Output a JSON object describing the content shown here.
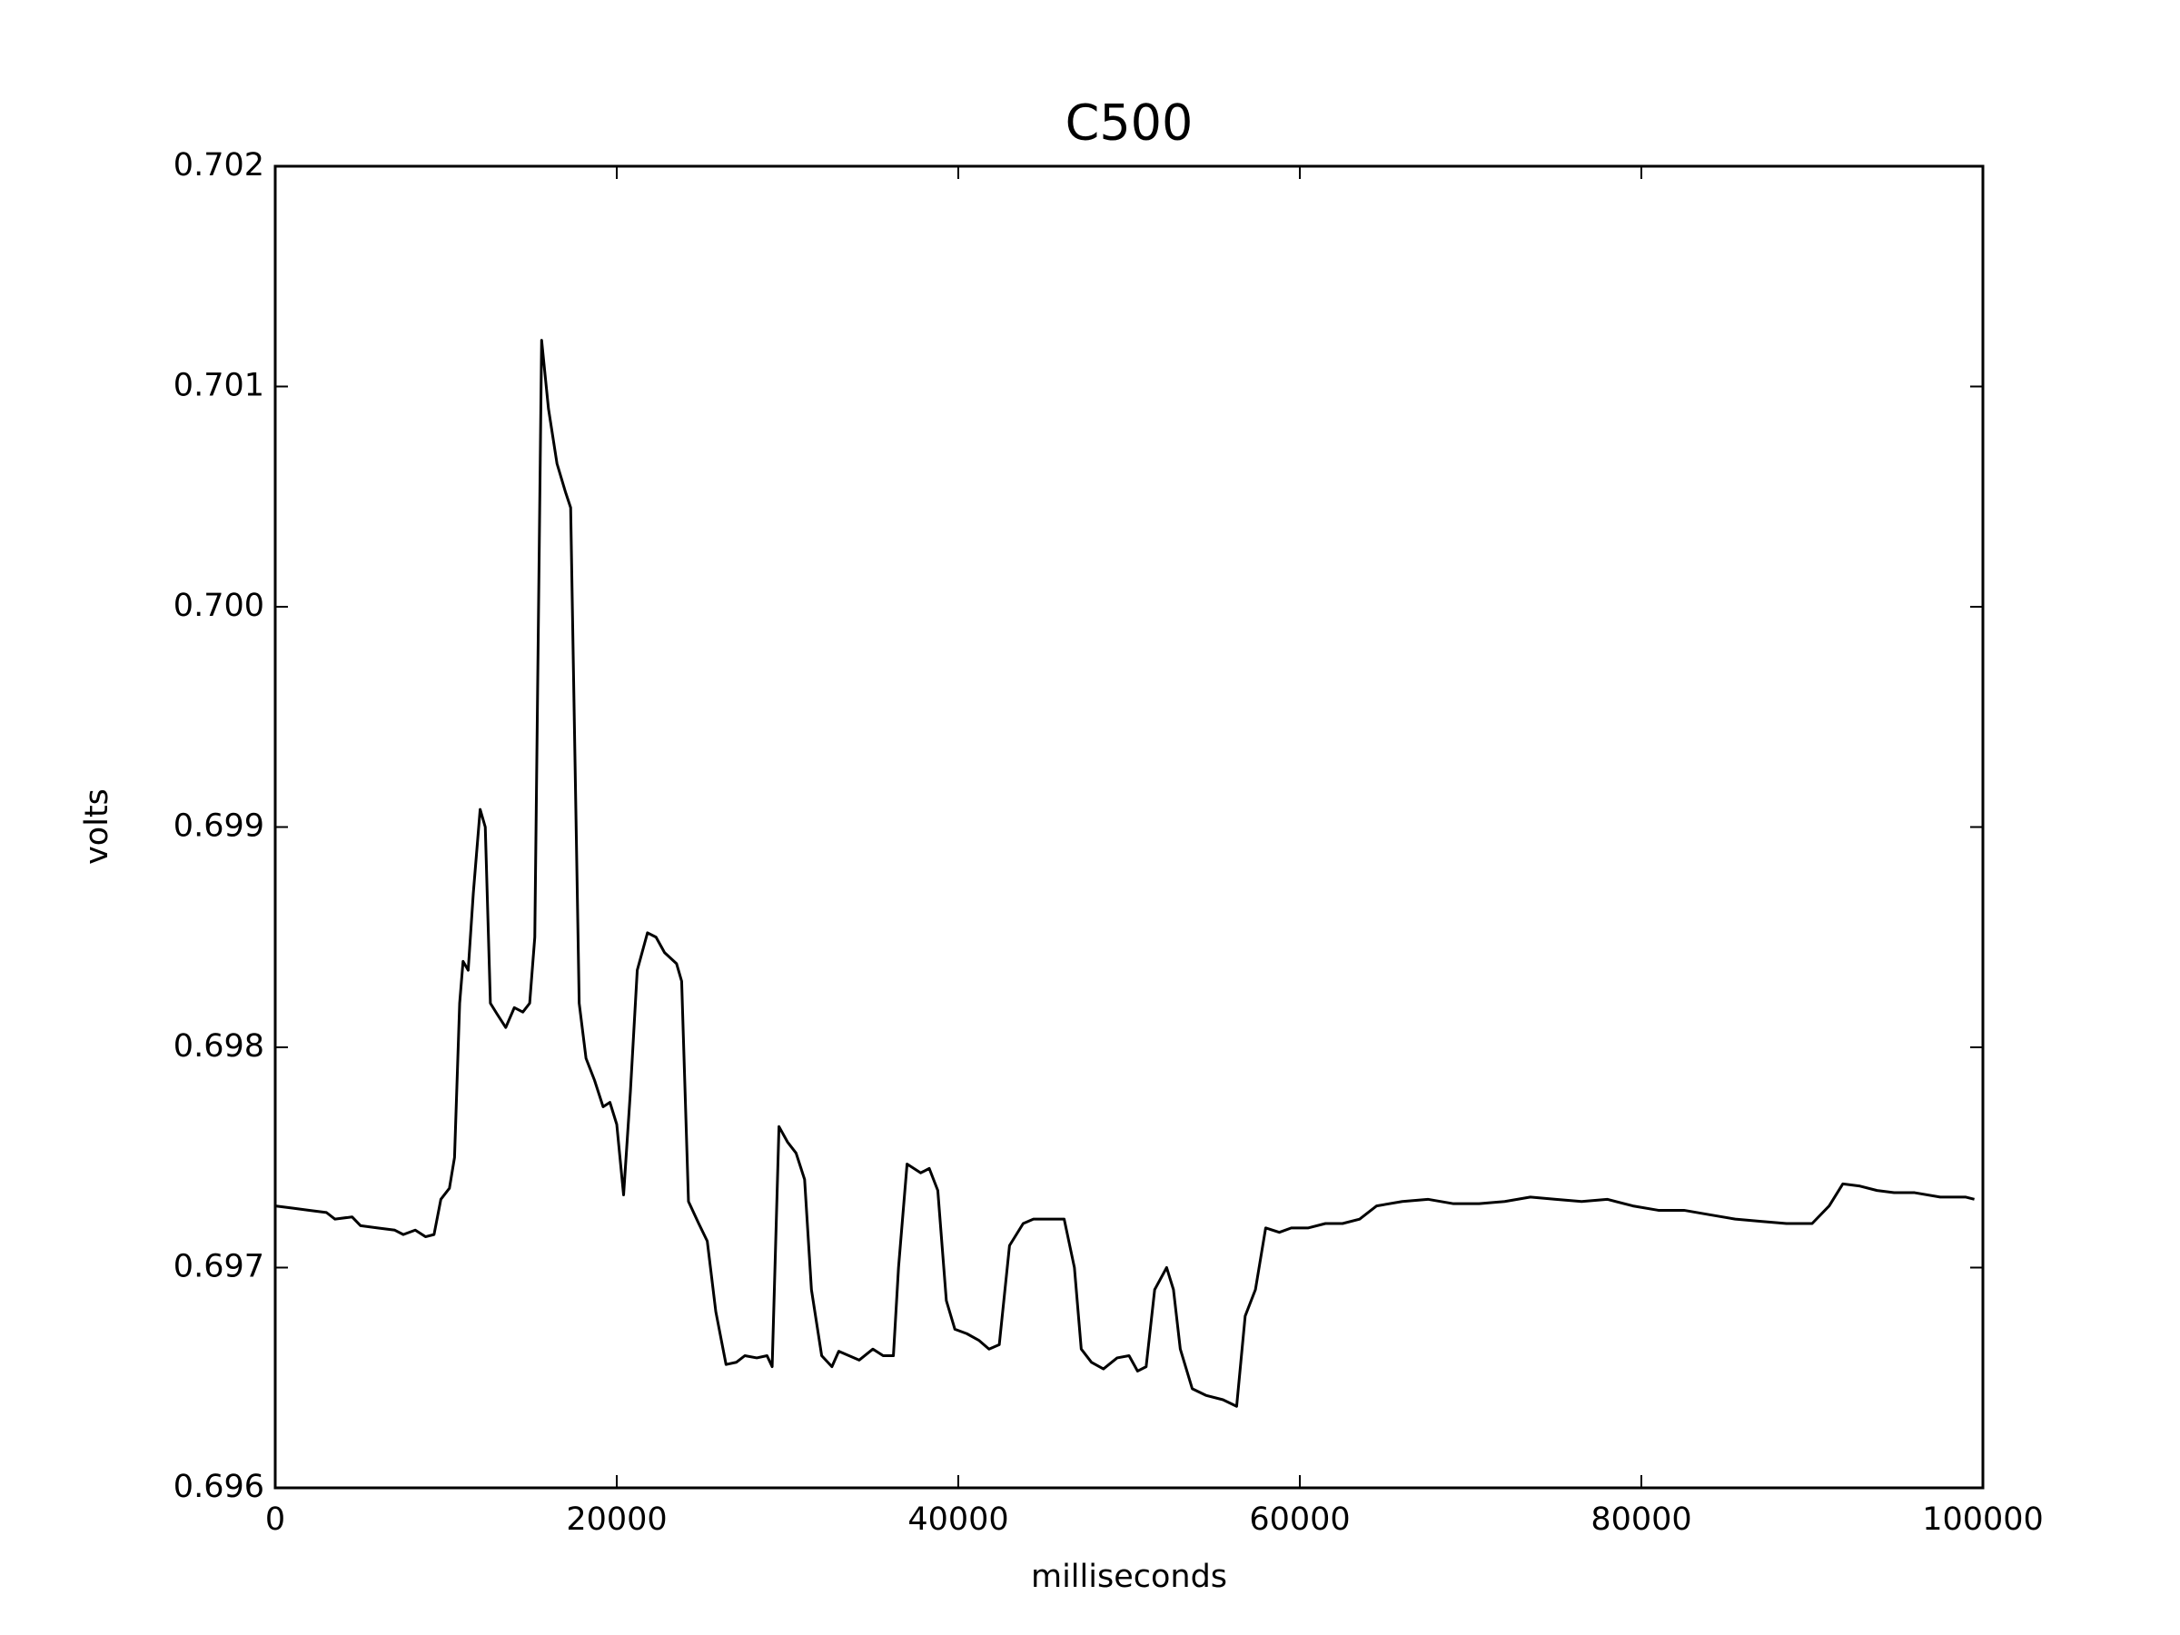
{
  "chart_data": {
    "type": "line",
    "title": "C500",
    "x_label": "milliseconds",
    "y_label": "volts",
    "xlim": [
      0,
      100000
    ],
    "xticks": [
      0,
      20000,
      40000,
      60000,
      80000,
      100000
    ],
    "ylim": [
      0.696,
      0.702
    ],
    "yticks": [
      0.696,
      0.697,
      0.698,
      0.699,
      {
        "value": 0.7,
        "label": "0.700"
      },
      0.701,
      0.702
    ],
    "grid": false,
    "x": [
      0,
      1000,
      2000,
      3000,
      3500,
      4500,
      5000,
      6000,
      7000,
      7500,
      8200,
      8800,
      9300,
      9700,
      10200,
      10500,
      10800,
      11000,
      11300,
      11600,
      12000,
      12300,
      12600,
      13000,
      13500,
      14000,
      14500,
      14900,
      15200,
      15600,
      16000,
      16500,
      17000,
      17300,
      17800,
      18200,
      18700,
      19200,
      19600,
      20000,
      20400,
      20800,
      21200,
      21800,
      22300,
      22800,
      23500,
      23800,
      24200,
      24800,
      25300,
      25800,
      26400,
      27000,
      27500,
      28200,
      28800,
      29100,
      29500,
      30000,
      30500,
      31000,
      31400,
      32000,
      32600,
      33000,
      33600,
      34200,
      35000,
      35600,
      36200,
      36500,
      37000,
      37800,
      38300,
      38800,
      39300,
      39800,
      40500,
      41200,
      41800,
      42400,
      43000,
      43800,
      44400,
      45200,
      46200,
      46800,
      47200,
      47800,
      48500,
      49300,
      50000,
      50500,
      51000,
      51500,
      52200,
      52600,
      53000,
      53700,
      54500,
      55500,
      56300,
      56800,
      57400,
      58000,
      58800,
      59500,
      60500,
      61500,
      62500,
      63500,
      64500,
      66000,
      67500,
      69000,
      70500,
      72000,
      73500,
      75000,
      76500,
      78000,
      79500,
      81000,
      82500,
      84000,
      85500,
      87000,
      88500,
      90000,
      91000,
      91800,
      92800,
      93800,
      94800,
      96000,
      97500,
      99000,
      99500
    ],
    "series": [
      {
        "name": "C500",
        "color": "#000000",
        "values": [
          0.69728,
          0.69727,
          0.69726,
          0.69725,
          0.69722,
          0.69723,
          0.69719,
          0.69718,
          0.69717,
          0.69715,
          0.69717,
          0.69714,
          0.69715,
          0.69731,
          0.69736,
          0.6975,
          0.6982,
          0.69839,
          0.69835,
          0.6987,
          0.69908,
          0.699,
          0.6982,
          0.69815,
          0.69809,
          0.69818,
          0.69816,
          0.6982,
          0.6985,
          0.70121,
          0.7009,
          0.70065,
          0.70052,
          0.70045,
          0.6982,
          0.69795,
          0.69785,
          0.69773,
          0.69775,
          0.69765,
          0.69733,
          0.6978,
          0.69835,
          0.69852,
          0.6985,
          0.69843,
          0.69838,
          0.6983,
          0.6973,
          0.6972,
          0.69712,
          0.6968,
          0.69656,
          0.69657,
          0.6966,
          0.69659,
          0.6966,
          0.69655,
          0.69764,
          0.69757,
          0.69752,
          0.6974,
          0.6969,
          0.6966,
          0.69655,
          0.69662,
          0.6966,
          0.69658,
          0.69663,
          0.6966,
          0.6966,
          0.697,
          0.69747,
          0.69743,
          0.69745,
          0.69735,
          0.69685,
          0.69672,
          0.6967,
          0.69667,
          0.69663,
          0.69665,
          0.6971,
          0.6972,
          0.69722,
          0.69722,
          0.69722,
          0.697,
          0.69663,
          0.69657,
          0.69654,
          0.69659,
          0.6966,
          0.69653,
          0.69655,
          0.6969,
          0.697,
          0.6969,
          0.69663,
          0.69645,
          0.69642,
          0.6964,
          0.69637,
          0.69678,
          0.6969,
          0.69718,
          0.69716,
          0.69718,
          0.69718,
          0.6972,
          0.6972,
          0.69722,
          0.69728,
          0.6973,
          0.69731,
          0.69729,
          0.69729,
          0.6973,
          0.69732,
          0.69731,
          0.6973,
          0.69731,
          0.69728,
          0.69726,
          0.69726,
          0.69724,
          0.69722,
          0.69721,
          0.6972,
          0.6972,
          0.69728,
          0.69738,
          0.69737,
          0.69735,
          0.69734,
          0.69734,
          0.69732,
          0.69732,
          0.69731
        ]
      }
    ]
  }
}
